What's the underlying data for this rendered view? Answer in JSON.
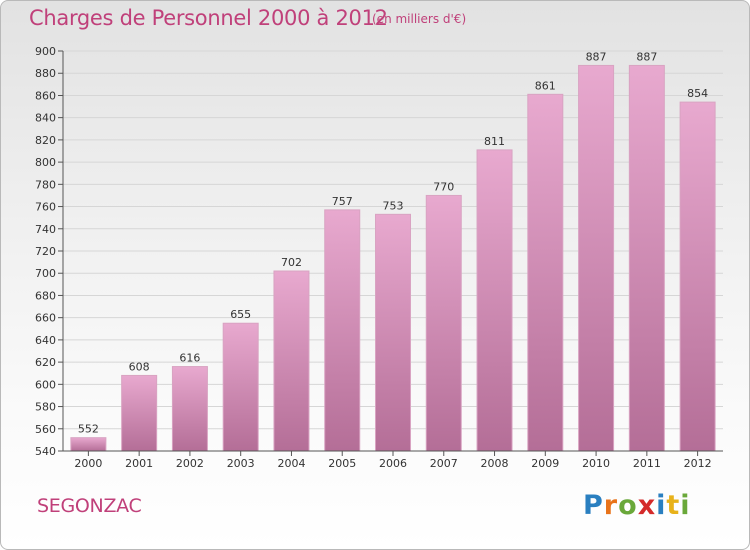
{
  "header": {
    "title": "Charges de Personnel 2000 à 2012",
    "subtitle": "(en milliers d'€)"
  },
  "footer": {
    "commune": "SEGONZAC",
    "logo_text": "Proxiti",
    "logo_letters": [
      {
        "char": "P",
        "color": "#2a7fc0"
      },
      {
        "char": "r",
        "color": "#e8731a"
      },
      {
        "char": "o",
        "color": "#6aa83a"
      },
      {
        "char": "x",
        "color": "#d42a2a"
      },
      {
        "char": "i",
        "color": "#2a7fc0"
      },
      {
        "char": "t",
        "color": "#e8b21a"
      },
      {
        "char": "i",
        "color": "#6aa83a"
      }
    ]
  },
  "colors": {
    "accent": "#c0407a",
    "bar_top": "#e8a9cf",
    "bar_bottom": "#b46e97",
    "grid": "#d6d6d6"
  },
  "chart_data": {
    "type": "bar",
    "title": "Charges de Personnel 2000 à 2012",
    "subtitle": "(en milliers d'€)",
    "categories": [
      "2000",
      "2001",
      "2002",
      "2003",
      "2004",
      "2005",
      "2006",
      "2007",
      "2008",
      "2009",
      "2010",
      "2011",
      "2012"
    ],
    "values": [
      552,
      608,
      616,
      655,
      702,
      757,
      753,
      770,
      811,
      861,
      887,
      887,
      854
    ],
    "ylim": [
      540,
      900
    ],
    "yticks": [
      540,
      560,
      580,
      600,
      620,
      640,
      660,
      680,
      700,
      720,
      740,
      760,
      780,
      800,
      820,
      840,
      860,
      880,
      900
    ],
    "xlabel": "",
    "ylabel": "",
    "grid": true,
    "data_labels": true
  }
}
